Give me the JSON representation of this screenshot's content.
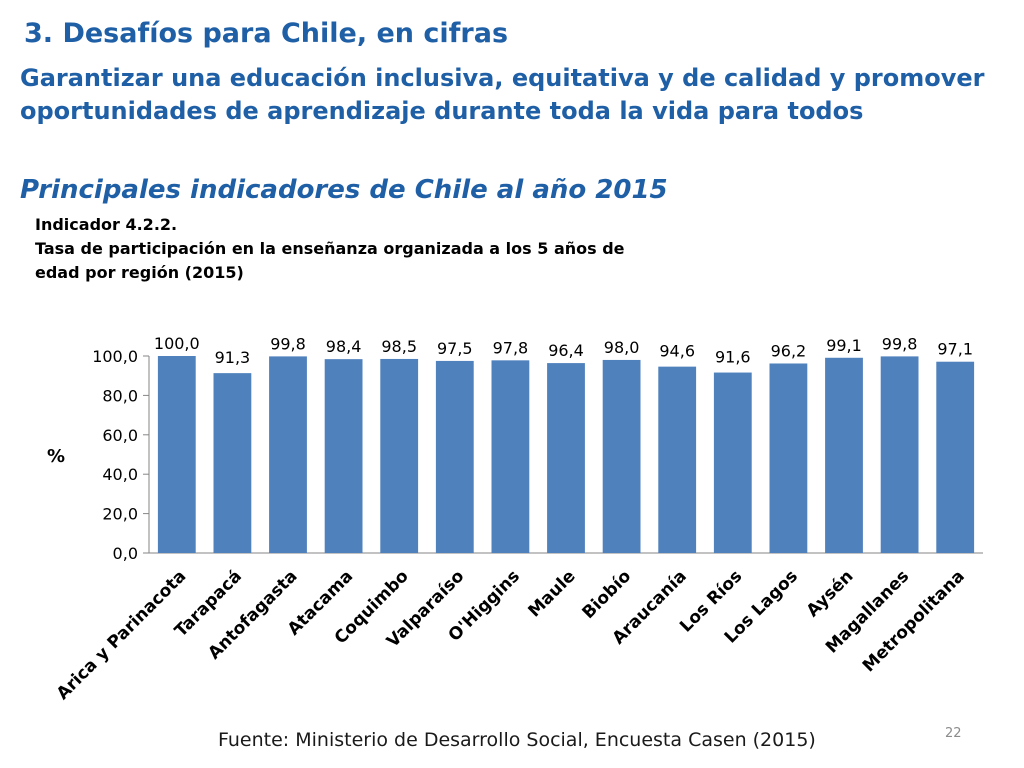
{
  "slide": {
    "title": "3. Desafíos para Chile, en cifras",
    "subtitle": "Garantizar una educación inclusiva, equitativa y de calidad y promover oportunidades de aprendizaje durante toda la vida para todos",
    "section_heading": "Principales indicadores de Chile al año 2015",
    "indicator_code": "Indicador 4.2.2.",
    "indicator_desc_line1": "Tasa de participación en la enseñanza organizada a los 5 años de",
    "indicator_desc_line2": "edad por región (2015)",
    "source": "Fuente: Ministerio de Desarrollo Social, Encuesta Casen (2015)",
    "page_number": "22"
  },
  "chart_data": {
    "type": "bar",
    "title": "",
    "xlabel": "",
    "ylabel": "%",
    "ylim": [
      0,
      100
    ],
    "yticks": [
      "0,0",
      "20,0",
      "40,0",
      "60,0",
      "80,0",
      "100,0"
    ],
    "grid": false,
    "legend": "none",
    "bar_color": "#4F81BD",
    "categories": [
      "Arica y Parinacota",
      "Tarapacá",
      "Antofagasta",
      "Atacama",
      "Coquimbo",
      "Valparaíso",
      "O'Higgins",
      "Maule",
      "Biobío",
      "Araucanía",
      "Los Ríos",
      "Los Lagos",
      "Aysén",
      "Magallanes",
      "Metropolitana"
    ],
    "values": [
      100.0,
      91.3,
      99.8,
      98.4,
      98.5,
      97.5,
      97.8,
      96.4,
      98.0,
      94.6,
      91.6,
      96.2,
      99.1,
      99.8,
      97.1
    ],
    "value_labels": [
      "100,0",
      "91,3",
      "99,8",
      "98,4",
      "98,5",
      "97,5",
      "97,8",
      "96,4",
      "98,0",
      "94,6",
      "91,6",
      "96,2",
      "99,1",
      "99,8",
      "97,1"
    ]
  }
}
